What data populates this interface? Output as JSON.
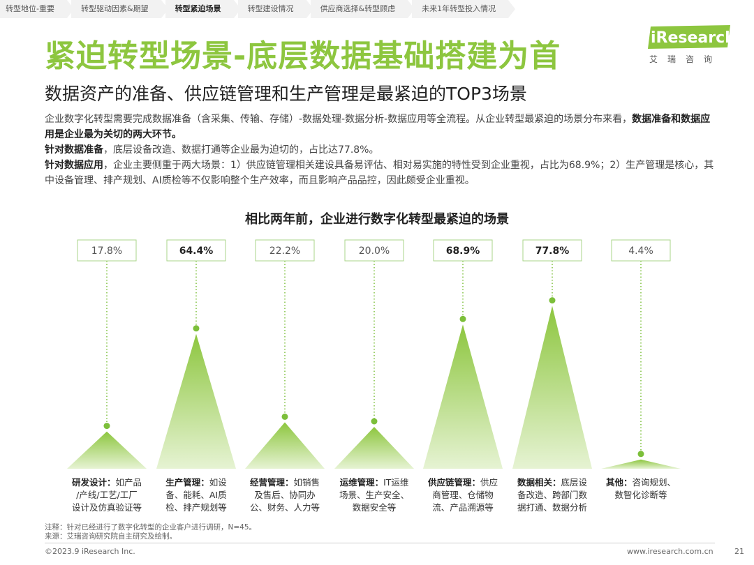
{
  "nav": {
    "items": [
      {
        "label": "转型地位-重要",
        "active": false
      },
      {
        "label": "转型驱动因素&期望",
        "active": false
      },
      {
        "label": "转型紧迫场景",
        "active": true
      },
      {
        "label": "转型建设情况",
        "active": false
      },
      {
        "label": "供应商选择&转型顾虑",
        "active": false
      },
      {
        "label": "未来1年转型投入情况",
        "active": false
      }
    ]
  },
  "header": {
    "title": "紧迫转型场景-底层数据基础搭建为首",
    "subtitle": "数据资产的准备、供应链管理和生产管理是最紧迫的TOP3场景"
  },
  "logo": {
    "text": "iResearch",
    "sub": "艾瑞咨询"
  },
  "body": {
    "p1_a": "企业数字化转型需要完成数据准备（含采集、传输、存储）-数据处理-数据分析-数据应用等全流程。从企业转型最紧迫的场景分布来看，",
    "p1_b": "数据准备和数据应用是企业最为关切的两大环节。",
    "p2_a": "针对数据准备",
    "p2_b": "，底层设备改造、数据打通等企业最为迫切的，占比达77.8%。",
    "p3_a": "针对数据应用",
    "p3_b": "，企业主要侧重于两大场景：1）供应链管理相关建设具备易评估、相对易实施的特性受到企业重视，占比为68.9%；2）生产管理是核心，其中设备管理、排产规划、AI质检等不仅影响整个生产效率，而且影响产品品控，因此颇受企业重视。"
  },
  "chart_data": {
    "type": "bar",
    "title": "相比两年前，企业进行数字化转型最紧迫的场景",
    "unit": "%",
    "ylim": [
      0,
      100
    ],
    "categories": [
      {
        "name": "研发设计：",
        "desc": "如产品/产线/工艺/工厂设计及仿真验证等",
        "lines": [
          "研发设计：如产品",
          "/产线/工艺/工厂",
          "设计及仿真验证等"
        ],
        "bold_first": "研发设计："
      },
      {
        "name": "生产管理：",
        "desc": "如设备、能耗、AI质检、排产规划等",
        "lines": [
          "生产管理：如设",
          "备、能耗、AI质",
          "检、排产规划等"
        ],
        "bold_first": "生产管理："
      },
      {
        "name": "经营管理：",
        "desc": "如销售及售后、协同办公、财务、人力等",
        "lines": [
          "经营管理：如销售",
          "及售后、协同办",
          "公、财务、人力等"
        ],
        "bold_first": "经营管理："
      },
      {
        "name": "运维管理：",
        "desc": "IT运维场景、生产安全、数据安全等",
        "lines": [
          "运维管理：IT运维",
          "场景、生产安全、",
          "数据安全等"
        ],
        "bold_first": "运维管理："
      },
      {
        "name": "供应链管理：",
        "desc": "供应商管理、仓储物流、产品溯源等",
        "lines": [
          "供应链管理：供应",
          "商管理、仓储物",
          "流、产品溯源等"
        ],
        "bold_first": "供应链管理："
      },
      {
        "name": "数据相关：",
        "desc": "底层设备改造、跨部门数据打通、数据分析",
        "lines": [
          "数据相关：底层设",
          "备改造、跨部门数",
          "据打通、数据分析"
        ],
        "bold_first": "数据相关："
      },
      {
        "name": "其他：",
        "desc": "咨询规划、数智化诊断等",
        "lines": [
          "其他：咨询规划、",
          "数智化诊断等"
        ],
        "bold_first": "其他："
      }
    ],
    "values": [
      17.8,
      64.4,
      22.2,
      20.0,
      68.9,
      77.8,
      4.4
    ],
    "value_labels": [
      "17.8%",
      "64.4%",
      "22.2%",
      "20.0%",
      "68.9%",
      "77.8%",
      "4.4%"
    ],
    "highlight": [
      false,
      true,
      false,
      false,
      true,
      true,
      false
    ],
    "colors": {
      "top": "#8dc63f",
      "bottom": "#ffffff",
      "dot": "#7cbf3a",
      "label_border": "#8dc63f"
    }
  },
  "notes": {
    "note": "注释：针对已经进行了数字化转型的企业客户进行调研，N=45。",
    "source": "来源：艾瑞咨询研究院自主研究及绘制。"
  },
  "footer": {
    "left": "©2023.9 iResearch Inc.",
    "right": "www.iresearch.com.cn",
    "page": "21"
  }
}
